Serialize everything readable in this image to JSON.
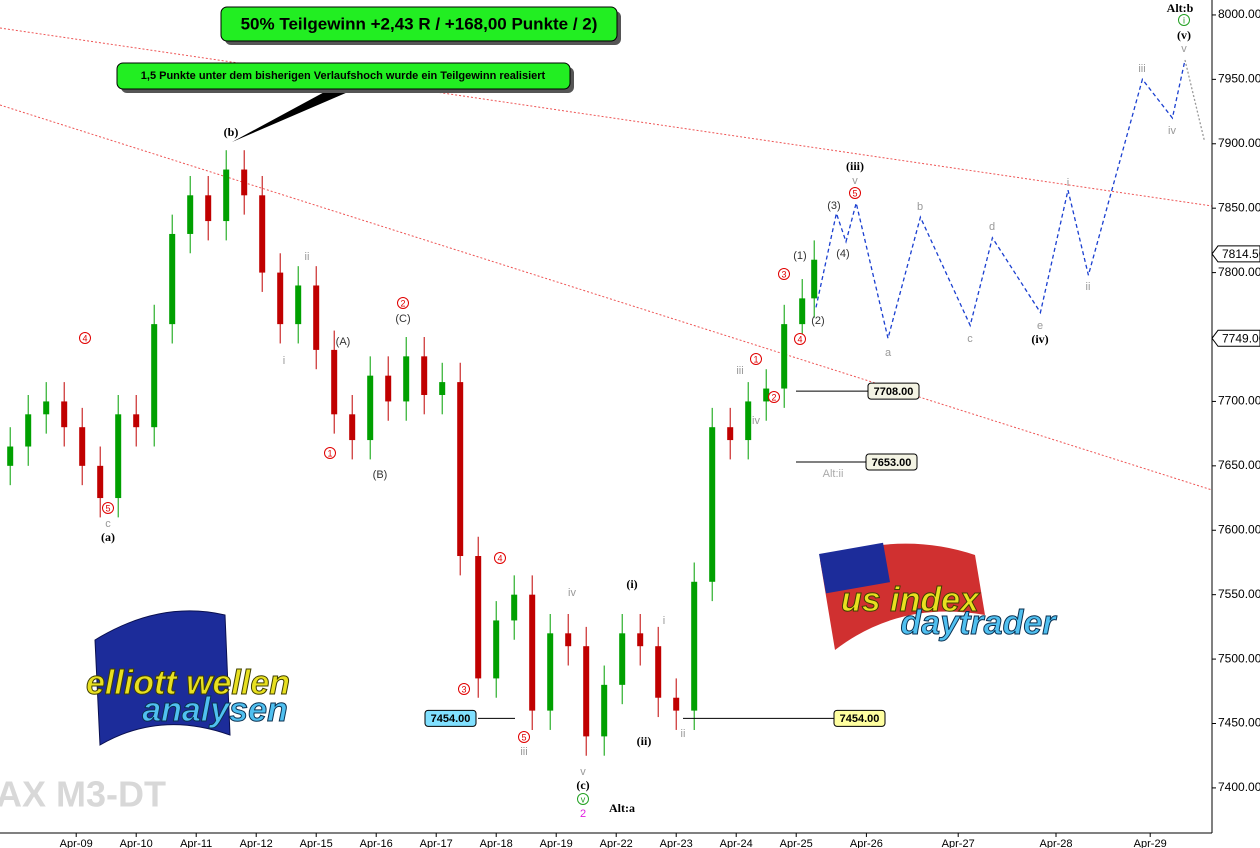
{
  "chart_data": {
    "type": "candlestick",
    "title": "50% Teilgewinn +2,43 R / +168,00 Punkte / 2)",
    "callout": "1,5 Punkte unter dem bisherigen Verlaufshoch wurde ein Teilgewinn realisiert",
    "watermark": "AX M3-DT",
    "logo_left": [
      "elliott wellen",
      "analysen"
    ],
    "logo_right": [
      "us index",
      "daytrader"
    ],
    "up_color": "#00a000",
    "down_color": "#c00000",
    "x": [
      -1.1,
      -0.8,
      -0.5,
      -0.2,
      0.1,
      0.4,
      0.7,
      1.0,
      1.3,
      1.6,
      1.9,
      2.2,
      2.5,
      2.8,
      3.1,
      3.4,
      3.7,
      4.0,
      4.3,
      4.6,
      4.9,
      5.2,
      5.5,
      5.8,
      6.1,
      6.4,
      6.7,
      7.0,
      7.3,
      7.6,
      7.9,
      8.2,
      8.5,
      8.8,
      9.1,
      9.4,
      9.7,
      10.0,
      10.3,
      10.6,
      10.9,
      11.2,
      11.5,
      11.8,
      12.1,
      12.3
    ],
    "open": [
      7650,
      7665,
      7690,
      7700,
      7680,
      7650,
      7625,
      7690,
      7680,
      7760,
      7830,
      7860,
      7840,
      7880,
      7860,
      7800,
      7760,
      7790,
      7740,
      7690,
      7670,
      7720,
      7700,
      7735,
      7705,
      7715,
      7580,
      7485,
      7530,
      7550,
      7460,
      7520,
      7510,
      7440,
      7480,
      7520,
      7510,
      7470,
      7460,
      7560,
      7680,
      7670,
      7700,
      7710,
      7760,
      7780
    ],
    "high": [
      7680,
      7705,
      7715,
      7715,
      7695,
      7665,
      7705,
      7705,
      7775,
      7845,
      7875,
      7875,
      7895,
      7895,
      7875,
      7815,
      7805,
      7805,
      7755,
      7705,
      7735,
      7735,
      7750,
      7750,
      7730,
      7730,
      7595,
      7545,
      7565,
      7565,
      7535,
      7535,
      7525,
      7495,
      7535,
      7535,
      7525,
      7485,
      7575,
      7695,
      7695,
      7715,
      7725,
      7775,
      7795,
      7825
    ],
    "low": [
      7635,
      7650,
      7675,
      7665,
      7635,
      7610,
      7610,
      7665,
      7665,
      7745,
      7815,
      7825,
      7825,
      7845,
      7785,
      7745,
      7745,
      7725,
      7675,
      7655,
      7655,
      7685,
      7685,
      7690,
      7690,
      7565,
      7470,
      7470,
      7515,
      7445,
      7445,
      7495,
      7425,
      7425,
      7465,
      7495,
      7455,
      7445,
      7445,
      7545,
      7655,
      7655,
      7685,
      7695,
      7745,
      7765
    ],
    "close": [
      7665,
      7690,
      7700,
      7680,
      7650,
      7625,
      7690,
      7680,
      7760,
      7830,
      7860,
      7840,
      7880,
      7860,
      7800,
      7760,
      7790,
      7740,
      7690,
      7670,
      7720,
      7700,
      7735,
      7705,
      7715,
      7580,
      7485,
      7530,
      7550,
      7460,
      7520,
      7510,
      7440,
      7480,
      7520,
      7510,
      7470,
      7460,
      7560,
      7680,
      7670,
      7700,
      7710,
      7760,
      7780,
      7810
    ],
    "projection": {
      "color": "#1a3fd0",
      "x": [
        12.33,
        12.67,
        12.83,
        13.0,
        13.53,
        14.07,
        14.9,
        15.27,
        16.07,
        16.53,
        16.87,
        17.77,
        18.27,
        18.48
      ],
      "values": [
        7773,
        7846,
        7824,
        7854,
        7749,
        7843,
        7759,
        7827,
        7769,
        7864,
        7798,
        7950,
        7920,
        7965
      ]
    },
    "projection_alt": {
      "color": "#999999",
      "x": [
        18.48,
        18.8
      ],
      "values": [
        7965,
        7903
      ]
    },
    "levels": [
      {
        "value": 7708,
        "label": "7708.00"
      },
      {
        "value": 7653,
        "label": "7653.00"
      },
      {
        "value": 7454,
        "label": "7454.00"
      },
      {
        "value": 7454,
        "label": "7454.00"
      }
    ],
    "price_marks": [
      {
        "value": 7814.5,
        "label": "7814.50"
      },
      {
        "value": 7749,
        "label": "7749.00"
      }
    ],
    "wave_labels": [
      {
        "text": "(b)",
        "color": "#000000"
      },
      {
        "text": "ii",
        "color": "#999999"
      },
      {
        "text": "i",
        "color": "#999999"
      },
      {
        "text": "(A)",
        "color": "#333333"
      },
      {
        "text": "(B)",
        "color": "#333333"
      },
      {
        "text": "(C)",
        "color": "#333333"
      },
      {
        "text": "2",
        "color": "#e00000",
        "circled": true
      },
      {
        "text": "1",
        "color": "#e00000",
        "circled": true
      },
      {
        "text": "4",
        "color": "#e00000",
        "circled": true
      },
      {
        "text": "5",
        "color": "#e00000",
        "circled": true
      },
      {
        "text": "c",
        "color": "#999999"
      },
      {
        "text": "(a)",
        "color": "#000000"
      },
      {
        "text": "4",
        "color": "#e00000",
        "circled": true
      },
      {
        "text": "3",
        "color": "#e00000",
        "circled": true
      },
      {
        "text": "5",
        "color": "#e00000",
        "circled": true
      },
      {
        "text": "iii",
        "color": "#999999"
      },
      {
        "text": "iv",
        "color": "#999999"
      },
      {
        "text": "v",
        "color": "#999999"
      },
      {
        "text": "(c)",
        "color": "#000000"
      },
      {
        "text": "v",
        "color": "#22a022",
        "circled": true
      },
      {
        "text": "2",
        "color": "#e020e0"
      },
      {
        "text": "(i)",
        "color": "#000000"
      },
      {
        "text": "i",
        "color": "#999999"
      },
      {
        "text": "(ii)",
        "color": "#000000"
      },
      {
        "text": "ii",
        "color": "#999999"
      },
      {
        "text": "iii",
        "color": "#999999"
      },
      {
        "text": "iv",
        "color": "#999999"
      },
      {
        "text": "1",
        "color": "#e00000",
        "circled": true
      },
      {
        "text": "2",
        "color": "#e00000",
        "circled": true
      },
      {
        "text": "3",
        "color": "#e00000",
        "circled": true
      },
      {
        "text": "4",
        "color": "#e00000",
        "circled": true
      },
      {
        "text": "(1)",
        "color": "#333333"
      },
      {
        "text": "(2)",
        "color": "#333333"
      },
      {
        "text": "(3)",
        "color": "#333333"
      },
      {
        "text": "(4)",
        "color": "#333333"
      },
      {
        "text": "5",
        "color": "#e00000",
        "circled": true
      },
      {
        "text": "v",
        "color": "#999999"
      },
      {
        "text": "(iii)",
        "color": "#000000"
      },
      {
        "text": "a",
        "color": "#999999"
      },
      {
        "text": "b",
        "color": "#999999"
      },
      {
        "text": "c",
        "color": "#999999"
      },
      {
        "text": "d",
        "color": "#999999"
      },
      {
        "text": "e",
        "color": "#999999"
      },
      {
        "text": "(iv)",
        "color": "#000000"
      },
      {
        "text": "i",
        "color": "#999999"
      },
      {
        "text": "ii",
        "color": "#999999"
      },
      {
        "text": "iii",
        "color": "#999999"
      },
      {
        "text": "iv",
        "color": "#999999"
      },
      {
        "text": "v",
        "color": "#999999"
      },
      {
        "text": "(v)",
        "color": "#000000"
      },
      {
        "text": "i",
        "color": "#22a022",
        "circled": true
      },
      {
        "text": "Alt:b",
        "color": "#000000"
      },
      {
        "text": "Alt:a",
        "color": "#000000"
      },
      {
        "text": "Alt:ii",
        "color": "#aaaaaa"
      }
    ],
    "xlim": [
      -1.27,
      18.93
    ],
    "xticks": [
      {
        "value": 0,
        "label": "Apr-09"
      },
      {
        "value": 1,
        "label": "Apr-10"
      },
      {
        "value": 2,
        "label": "Apr-11"
      },
      {
        "value": 3,
        "label": "Apr-12"
      },
      {
        "value": 4,
        "label": "Apr-15"
      },
      {
        "value": 5,
        "label": "Apr-16"
      },
      {
        "value": 6,
        "label": "Apr-17"
      },
      {
        "value": 7,
        "label": "Apr-18"
      },
      {
        "value": 8,
        "label": "Apr-19"
      },
      {
        "value": 9,
        "label": "Apr-22"
      },
      {
        "value": 10,
        "label": "Apr-23"
      },
      {
        "value": 11,
        "label": "Apr-24"
      },
      {
        "value": 12,
        "label": "Apr-25"
      },
      {
        "value": 13.17,
        "label": "Apr-26"
      },
      {
        "value": 14.7,
        "label": "Apr-27"
      },
      {
        "value": 16.33,
        "label": "Apr-28"
      },
      {
        "value": 17.9,
        "label": "Apr-29"
      }
    ],
    "ylim": [
      7365,
      8011.6
    ],
    "yticks": [
      {
        "value": 7400,
        "label": "7400.00"
      },
      {
        "value": 7450,
        "label": "7450.00"
      },
      {
        "value": 7500,
        "label": "7500.00"
      },
      {
        "value": 7550,
        "label": "7550.00"
      },
      {
        "value": 7600,
        "label": "7600.00"
      },
      {
        "value": 7650,
        "label": "7650.00"
      },
      {
        "value": 7700,
        "label": "7700.00"
      },
      {
        "value": 7750,
        "label": "7750.00"
      },
      {
        "value": 7800,
        "label": "7800.00"
      },
      {
        "value": 7850,
        "label": "7850.00"
      },
      {
        "value": 7900,
        "label": "7900.00"
      },
      {
        "value": 7950,
        "label": "7950.00"
      },
      {
        "value": 8000,
        "label": "8000.00"
      }
    ]
  }
}
